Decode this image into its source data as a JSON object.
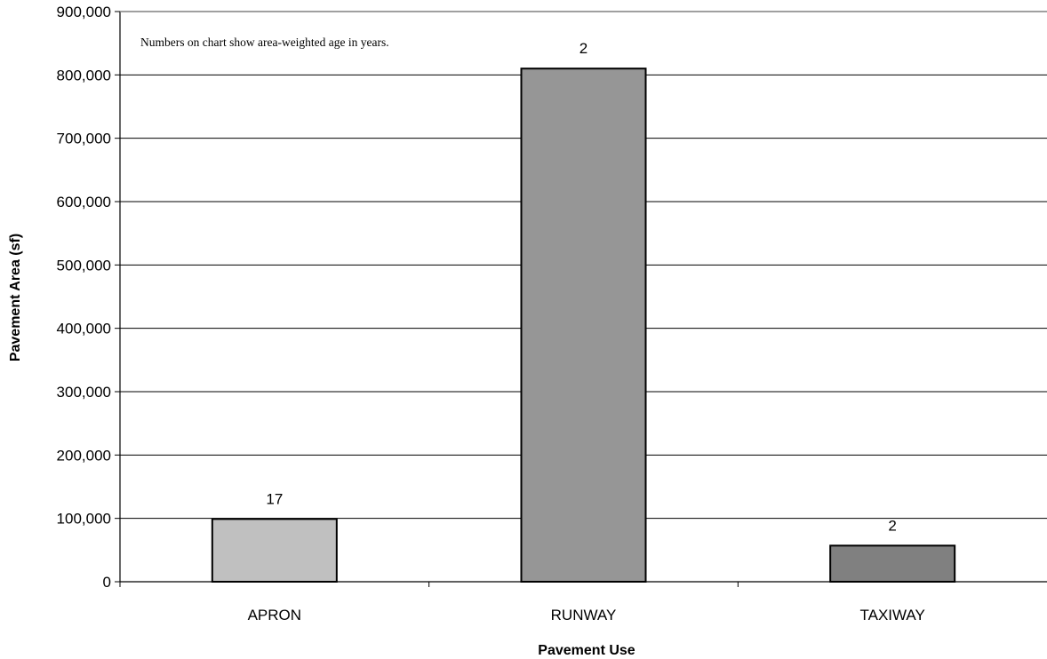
{
  "chart_data": {
    "type": "bar",
    "categories": [
      "APRON",
      "RUNWAY",
      "TAXIWAY"
    ],
    "values": [
      99000,
      810000,
      57000
    ],
    "data_labels": [
      "17",
      "2",
      "2"
    ],
    "bar_colors": [
      "#c0c0c0",
      "#969696",
      "#808080"
    ],
    "annotation": "Numbers on chart show area-weighted age in years.",
    "xlabel": "Pavement Use",
    "ylabel": "Pavement Area (sf)",
    "ylim": [
      0,
      900000
    ],
    "yticks": [
      0,
      100000,
      200000,
      300000,
      400000,
      500000,
      600000,
      700000,
      800000,
      900000
    ],
    "ytick_labels": [
      "0",
      "100,000",
      "200,000",
      "300,000",
      "400,000",
      "500,000",
      "600,000",
      "700,000",
      "800,000",
      "900,000"
    ],
    "grid": true,
    "legend": "none"
  }
}
